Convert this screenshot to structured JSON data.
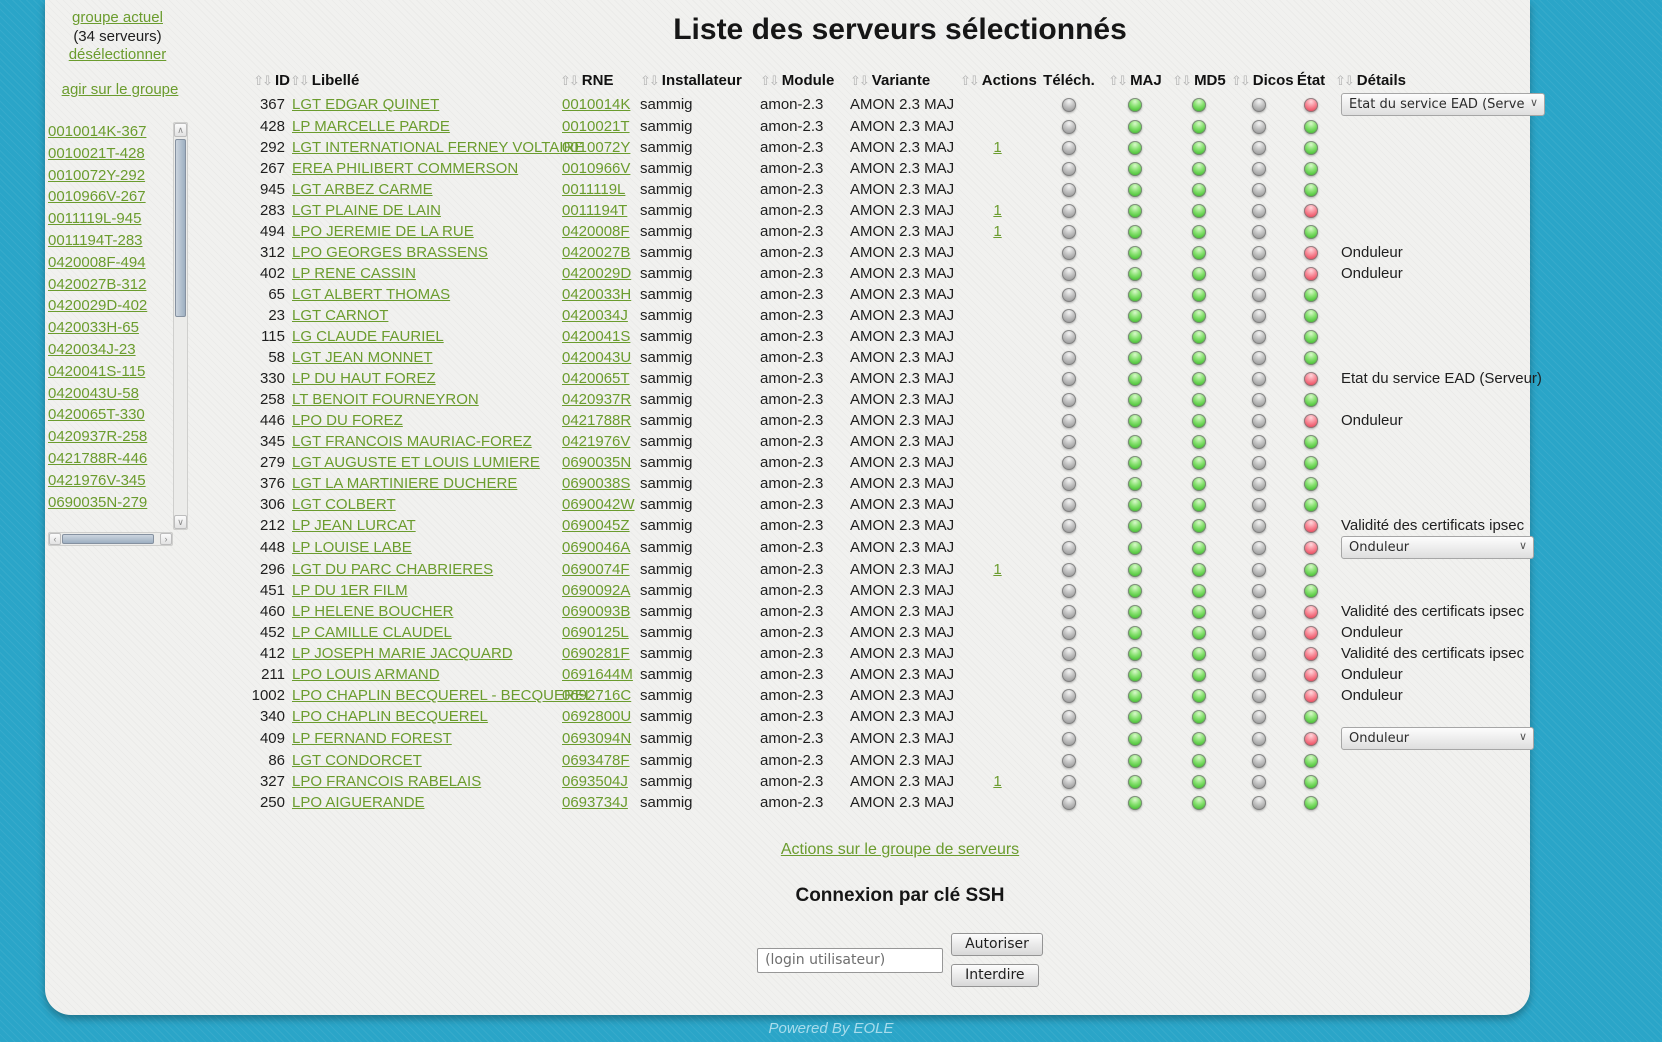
{
  "page": {
    "title": "Liste des serveurs sélectionnés"
  },
  "colors": {
    "background": "#2aa5c8",
    "panel": "#f1f1ef",
    "link_green": "#6b9c2e",
    "led_gray": "#9c9c9c",
    "led_green": "#47c133",
    "led_red": "#ec4b5e"
  },
  "icons": {
    "sort_up": "⇧",
    "sort_down": "⇩",
    "scroll_up": "∧",
    "scroll_down": "∨",
    "scroll_left": "‹",
    "scroll_right": "›"
  },
  "sidebar": {
    "group_link": "groupe actuel",
    "server_count": "(34 serveurs)",
    "deselect_link": "désélectionner",
    "act_on_group_link": "agir sur le groupe",
    "servers": [
      "0010014K-367",
      "0010021T-428",
      "0010072Y-292",
      "0010966V-267",
      "0011119L-945",
      "0011194T-283",
      "0420008F-494",
      "0420027B-312",
      "0420029D-402",
      "0420033H-65",
      "0420034J-23",
      "0420041S-115",
      "0420043U-58",
      "0420065T-330",
      "0420937R-258",
      "0421788R-446",
      "0421976V-345",
      "0690035N-279"
    ]
  },
  "table": {
    "columns": [
      {
        "key": "id",
        "label": "ID",
        "sorted": true,
        "align": "right"
      },
      {
        "key": "libelle",
        "label": "Libellé",
        "sorted": true,
        "align": "left"
      },
      {
        "key": "rne",
        "label": "RNE",
        "sorted": true,
        "align": "left"
      },
      {
        "key": "installateur",
        "label": "Installateur",
        "sorted": true,
        "align": "left"
      },
      {
        "key": "module",
        "label": "Module",
        "sorted": true,
        "align": "left"
      },
      {
        "key": "variante",
        "label": "Variante",
        "sorted": true,
        "align": "left"
      },
      {
        "key": "actions",
        "label": "Actions",
        "sorted": true,
        "align": "center"
      },
      {
        "key": "telech",
        "label": "Téléch.",
        "sorted": false,
        "align": "center",
        "led": true
      },
      {
        "key": "maj",
        "label": "MAJ",
        "sorted": true,
        "align": "center",
        "led": true
      },
      {
        "key": "md5",
        "label": "MD5",
        "sorted": true,
        "align": "center",
        "led": true
      },
      {
        "key": "dicos",
        "label": "Dicos",
        "sorted": true,
        "align": "center",
        "led": true
      },
      {
        "key": "etat",
        "label": "État",
        "sorted": false,
        "align": "center",
        "led": true
      },
      {
        "key": "details",
        "label": "Détails",
        "sorted": true,
        "align": "left"
      }
    ],
    "row_defaults": {
      "installateur": "sammig",
      "module": "amon-2.3",
      "variante": "AMON 2.3 MAJ"
    },
    "led_defaults": {
      "telech": "gray",
      "maj": "green",
      "md5": "green",
      "dicos": "gray"
    },
    "rows": [
      {
        "id": "367",
        "libelle": "LGT EDGAR QUINET",
        "rne": "0010014K",
        "actions": "",
        "etat": "red",
        "details": {
          "type": "select",
          "value": "Etat du service EAD (Serveur)",
          "wide": true
        }
      },
      {
        "id": "428",
        "libelle": "LP MARCELLE PARDE",
        "rne": "0010021T",
        "actions": "",
        "etat": "green",
        "details": {
          "type": "none"
        }
      },
      {
        "id": "292",
        "libelle": "LGT INTERNATIONAL FERNEY VOLTAIRE",
        "rne": "0010072Y",
        "actions": "1",
        "etat": "green",
        "details": {
          "type": "none"
        }
      },
      {
        "id": "267",
        "libelle": "EREA PHILIBERT COMMERSON",
        "rne": "0010966V",
        "actions": "",
        "etat": "green",
        "details": {
          "type": "none"
        }
      },
      {
        "id": "945",
        "libelle": "LGT ARBEZ CARME",
        "rne": "0011119L",
        "actions": "",
        "etat": "green",
        "details": {
          "type": "none"
        }
      },
      {
        "id": "283",
        "libelle": "LGT PLAINE DE LAIN",
        "rne": "0011194T",
        "actions": "1",
        "etat": "red",
        "details": {
          "type": "none"
        }
      },
      {
        "id": "494",
        "libelle": "LPO JEREMIE DE LA RUE",
        "rne": "0420008F",
        "actions": "1",
        "etat": "green",
        "details": {
          "type": "none"
        }
      },
      {
        "id": "312",
        "libelle": "LPO GEORGES BRASSENS",
        "rne": "0420027B",
        "actions": "",
        "etat": "red",
        "details": {
          "type": "text",
          "value": "Onduleur"
        }
      },
      {
        "id": "402",
        "libelle": "LP RENE CASSIN",
        "rne": "0420029D",
        "actions": "",
        "etat": "red",
        "details": {
          "type": "text",
          "value": "Onduleur"
        }
      },
      {
        "id": "65",
        "libelle": "LGT ALBERT THOMAS",
        "rne": "0420033H",
        "actions": "",
        "etat": "green",
        "details": {
          "type": "none"
        }
      },
      {
        "id": "23",
        "libelle": "LGT CARNOT",
        "rne": "0420034J",
        "actions": "",
        "etat": "green",
        "details": {
          "type": "none"
        }
      },
      {
        "id": "115",
        "libelle": "LG CLAUDE FAURIEL",
        "rne": "0420041S",
        "actions": "",
        "etat": "green",
        "details": {
          "type": "none"
        }
      },
      {
        "id": "58",
        "libelle": "LGT JEAN MONNET",
        "rne": "0420043U",
        "actions": "",
        "etat": "green",
        "details": {
          "type": "none"
        }
      },
      {
        "id": "330",
        "libelle": "LP DU HAUT FOREZ",
        "rne": "0420065T",
        "actions": "",
        "etat": "red",
        "details": {
          "type": "text",
          "value": "Etat du service EAD (Serveur)"
        }
      },
      {
        "id": "258",
        "libelle": "LT BENOIT FOURNEYRON",
        "rne": "0420937R",
        "actions": "",
        "etat": "green",
        "details": {
          "type": "none"
        }
      },
      {
        "id": "446",
        "libelle": "LPO DU FOREZ",
        "rne": "0421788R",
        "actions": "",
        "etat": "red",
        "details": {
          "type": "text",
          "value": "Onduleur"
        }
      },
      {
        "id": "345",
        "libelle": "LGT FRANCOIS MAURIAC-FOREZ",
        "rne": "0421976V",
        "actions": "",
        "etat": "green",
        "details": {
          "type": "none"
        }
      },
      {
        "id": "279",
        "libelle": "LGT AUGUSTE ET LOUIS LUMIERE",
        "rne": "0690035N",
        "actions": "",
        "etat": "green",
        "details": {
          "type": "none"
        }
      },
      {
        "id": "376",
        "libelle": "LGT LA MARTINIERE DUCHERE",
        "rne": "0690038S",
        "actions": "",
        "etat": "green",
        "details": {
          "type": "none"
        }
      },
      {
        "id": "306",
        "libelle": "LGT COLBERT",
        "rne": "0690042W",
        "actions": "",
        "etat": "green",
        "details": {
          "type": "none"
        }
      },
      {
        "id": "212",
        "libelle": "LP JEAN LURCAT",
        "rne": "0690045Z",
        "actions": "",
        "etat": "red",
        "details": {
          "type": "text",
          "value": "Validité des certificats ipsec"
        }
      },
      {
        "id": "448",
        "libelle": "LP LOUISE LABE",
        "rne": "0690046A",
        "actions": "",
        "etat": "red",
        "details": {
          "type": "select",
          "value": "Onduleur"
        }
      },
      {
        "id": "296",
        "libelle": "LGT DU PARC CHABRIERES",
        "rne": "0690074F",
        "actions": "1",
        "etat": "green",
        "details": {
          "type": "none"
        }
      },
      {
        "id": "451",
        "libelle": "LP DU 1ER FILM",
        "rne": "0690092A",
        "actions": "",
        "etat": "green",
        "details": {
          "type": "none"
        }
      },
      {
        "id": "460",
        "libelle": "LP HELENE BOUCHER",
        "rne": "0690093B",
        "actions": "",
        "etat": "red",
        "details": {
          "type": "text",
          "value": "Validité des certificats ipsec"
        }
      },
      {
        "id": "452",
        "libelle": "LP CAMILLE CLAUDEL",
        "rne": "0690125L",
        "actions": "",
        "etat": "red",
        "details": {
          "type": "text",
          "value": "Onduleur"
        }
      },
      {
        "id": "412",
        "libelle": "LP JOSEPH MARIE JACQUARD",
        "rne": "0690281F",
        "actions": "",
        "etat": "red",
        "details": {
          "type": "text",
          "value": "Validité des certificats ipsec"
        }
      },
      {
        "id": "211",
        "libelle": "LPO LOUIS ARMAND",
        "rne": "0691644M",
        "actions": "",
        "etat": "red",
        "details": {
          "type": "text",
          "value": "Onduleur"
        }
      },
      {
        "id": "1002",
        "libelle": "LPO CHAPLIN BECQUEREL - BECQUEREL",
        "rne": "0692716C",
        "actions": "",
        "etat": "red",
        "details": {
          "type": "text",
          "value": "Onduleur"
        }
      },
      {
        "id": "340",
        "libelle": "LPO CHAPLIN BECQUEREL",
        "rne": "0692800U",
        "actions": "",
        "etat": "green",
        "details": {
          "type": "none"
        }
      },
      {
        "id": "409",
        "libelle": "LP FERNAND FOREST",
        "rne": "0693094N",
        "actions": "",
        "etat": "red",
        "details": {
          "type": "select",
          "value": "Onduleur"
        }
      },
      {
        "id": "86",
        "libelle": "LGT CONDORCET",
        "rne": "0693478F",
        "actions": "",
        "etat": "green",
        "details": {
          "type": "none"
        }
      },
      {
        "id": "327",
        "libelle": "LPO FRANCOIS RABELAIS",
        "rne": "0693504J",
        "actions": "1",
        "etat": "green",
        "details": {
          "type": "none"
        }
      },
      {
        "id": "250",
        "libelle": "LPO AIGUERANDE",
        "rne": "0693734J",
        "actions": "",
        "etat": "green",
        "details": {
          "type": "none"
        }
      }
    ]
  },
  "group_actions_link": "Actions sur le groupe de serveurs",
  "ssh": {
    "heading": "Connexion par clé SSH",
    "login_placeholder": "(login utilisateur)",
    "authorize_button": "Autoriser",
    "forbid_button": "Interdire"
  },
  "footer": {
    "powered_by": "Powered By EOLE"
  }
}
